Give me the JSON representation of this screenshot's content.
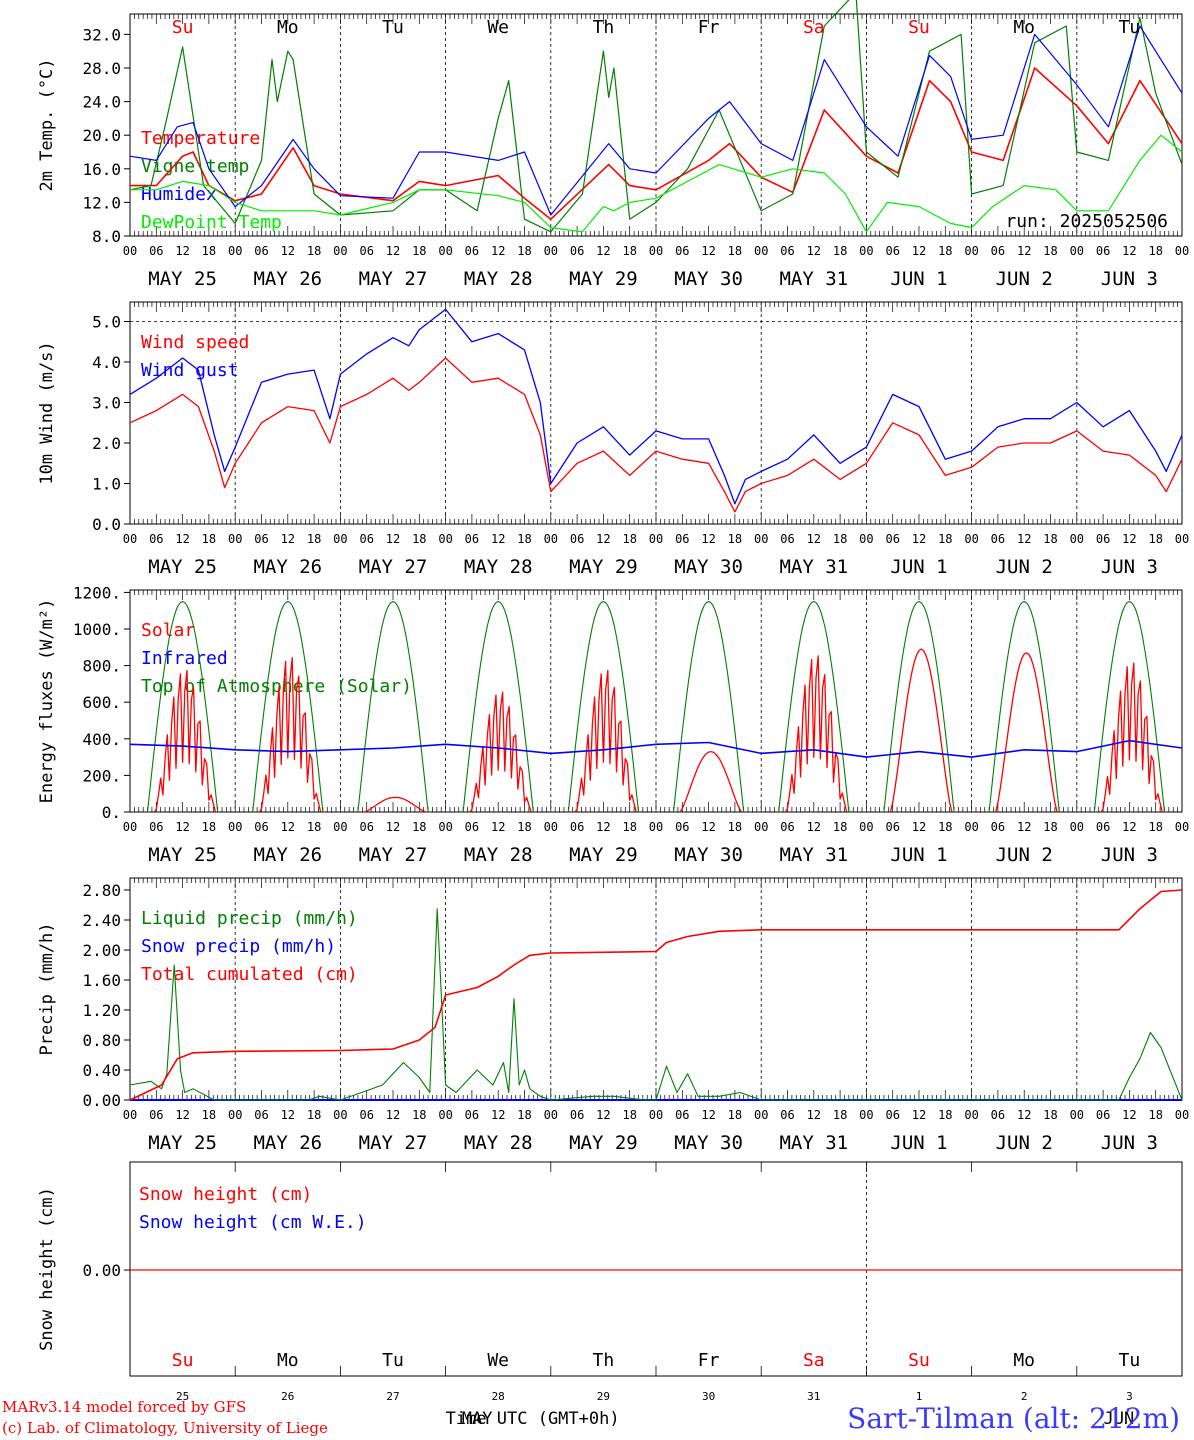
{
  "run_label": "run: 2025052506",
  "day_names": [
    "Su",
    "Mo",
    "Tu",
    "We",
    "Th",
    "Fr",
    "Sa",
    "Su",
    "Mo",
    "Tu"
  ],
  "date_labels": [
    "MAY 25",
    "MAY 26",
    "MAY 27",
    "MAY 28",
    "MAY 29",
    "MAY 30",
    "MAY 31",
    "JUN  1",
    "JUN  2",
    "JUN  3"
  ],
  "hour_labels": [
    "00",
    "06",
    "12",
    "18"
  ],
  "bottom_day_numbers": [
    "25",
    "26",
    "27",
    "28",
    "29",
    "30",
    "31",
    "1",
    "2",
    "3"
  ],
  "bottom_month_labels": [
    "MAY",
    "JUN"
  ],
  "time_axis_label": "Time UTC (GMT+0h)",
  "credits": [
    "MARv3.14 model forced by GFS",
    "(c) Lab. of Climatology, University of Liege"
  ],
  "station": "Sart-Tilman (alt: 212m)",
  "colors": {
    "red": "#ff0000",
    "green": "#008000",
    "blue": "#0000ff",
    "lightgreen": "#00ee00",
    "sunday": "#ff0000",
    "weekday": "#000000"
  },
  "chart_data": [
    {
      "type": "line",
      "ylabel": "2m Temp. (°C)",
      "ylim": [
        8,
        34
      ],
      "yticks": [
        "8.0",
        "12.0",
        "16.0",
        "20.0",
        "24.0",
        "28.0",
        "32.0"
      ],
      "x_unit": "day offset from 2025-05-25 00 UTC",
      "xlim": [
        0,
        10
      ],
      "series": [
        {
          "name": "Temperature",
          "color": "red",
          "x": [
            0,
            0.25,
            0.5,
            0.6,
            0.75,
            1,
            1.25,
            1.55,
            1.75,
            2,
            2.5,
            2.75,
            3,
            3.5,
            3.75,
            4,
            4.55,
            4.75,
            5,
            5.5,
            5.7,
            6,
            6.3,
            6.6,
            7,
            7.3,
            7.6,
            7.8,
            8,
            8.3,
            8.6,
            9,
            9.3,
            9.6,
            10
          ],
          "values": [
            14,
            14,
            17.5,
            18,
            14,
            12.2,
            13,
            18.5,
            14,
            13,
            12.2,
            14.5,
            14,
            15.2,
            12.5,
            10,
            16.5,
            14,
            13.5,
            17,
            19,
            15,
            13.2,
            23,
            17.5,
            15.5,
            26.5,
            24,
            18,
            17,
            28,
            23.5,
            19,
            26.5,
            19
          ]
        },
        {
          "name": "Vigne temp",
          "color": "green",
          "x": [
            0,
            0.2,
            0.35,
            0.5,
            0.7,
            1,
            1.25,
            1.35,
            1.4,
            1.5,
            1.55,
            1.75,
            2,
            2.5,
            2.75,
            3,
            3.3,
            3.5,
            3.6,
            3.75,
            4,
            4.3,
            4.5,
            4.55,
            4.6,
            4.75,
            5,
            5.3,
            5.6,
            6,
            6.3,
            6.6,
            6.9,
            7,
            7.3,
            7.6,
            7.9,
            8,
            8.3,
            8.6,
            8.9,
            9,
            9.3,
            9.6,
            9.75,
            10
          ],
          "values": [
            13.5,
            14,
            22,
            30.5,
            14,
            9.5,
            17,
            29,
            24,
            30,
            29,
            13,
            10.5,
            11,
            13.5,
            13.5,
            11,
            22,
            26.5,
            10,
            8.5,
            13,
            30,
            24.5,
            28,
            10,
            12,
            16,
            23,
            11,
            13,
            33,
            37,
            18,
            15,
            30,
            32,
            13,
            14,
            31,
            33,
            18,
            17,
            34,
            25,
            16.5
          ]
        },
        {
          "name": "Humidex",
          "color": "blue",
          "x": [
            0,
            0.25,
            0.45,
            0.6,
            0.75,
            1,
            1.25,
            1.55,
            1.75,
            2,
            2.5,
            2.75,
            3,
            3.5,
            3.75,
            4,
            4.55,
            4.75,
            5,
            5.5,
            5.7,
            6,
            6.3,
            6.6,
            7,
            7.3,
            7.6,
            7.8,
            8,
            8.3,
            8.6,
            9,
            9.3,
            9.6,
            10
          ],
          "values": [
            17.5,
            17,
            21,
            21.5,
            16,
            11.5,
            14,
            19.5,
            16,
            12.8,
            12.5,
            18,
            18,
            17,
            18,
            10.5,
            19,
            16,
            15.5,
            22,
            24,
            19,
            17,
            29,
            21,
            17.5,
            29.5,
            27,
            19.5,
            20,
            32,
            26,
            21,
            33,
            25
          ]
        },
        {
          "name": "DewPoint Temp",
          "color": "lightgreen",
          "x": [
            0,
            0.25,
            0.5,
            0.75,
            1,
            1.25,
            1.5,
            1.75,
            2,
            2.5,
            2.75,
            3,
            3.5,
            3.75,
            4,
            4.3,
            4.5,
            4.6,
            4.75,
            5,
            5.3,
            5.6,
            6,
            6.3,
            6.6,
            6.8,
            7,
            7.2,
            7.5,
            7.8,
            8,
            8.2,
            8.5,
            8.8,
            9,
            9.3,
            9.6,
            9.8,
            10
          ],
          "values": [
            13.5,
            13.5,
            14.5,
            14,
            12,
            11,
            11,
            11,
            10.5,
            12,
            13.5,
            13.5,
            12.8,
            12,
            9,
            8.5,
            11.5,
            11,
            12,
            12.5,
            14.5,
            16.5,
            15,
            16,
            15.5,
            13,
            8.5,
            12,
            11.5,
            9.5,
            9,
            11.5,
            14,
            13.5,
            11,
            11,
            17,
            20,
            18
          ]
        }
      ]
    },
    {
      "type": "line",
      "ylabel": "10m Wind (m/s)",
      "ylim": [
        0,
        5.4
      ],
      "yticks": [
        "0.0",
        "1.0",
        "2.0",
        "3.0",
        "4.0",
        "5.0"
      ],
      "x_unit": "day offset from 2025-05-25 00 UTC",
      "xlim": [
        0,
        10
      ],
      "series": [
        {
          "name": "Wind speed",
          "color": "red",
          "x": [
            0,
            0.25,
            0.5,
            0.65,
            0.8,
            0.9,
            1,
            1.25,
            1.5,
            1.75,
            1.9,
            2,
            2.25,
            2.5,
            2.65,
            2.75,
            3,
            3.25,
            3.5,
            3.75,
            3.9,
            4,
            4.25,
            4.5,
            4.75,
            5,
            5.25,
            5.5,
            5.65,
            5.75,
            5.85,
            6,
            6.25,
            6.5,
            6.75,
            7,
            7.25,
            7.5,
            7.75,
            8,
            8.25,
            8.5,
            8.75,
            9,
            9.25,
            9.5,
            9.75,
            9.85,
            10
          ],
          "values": [
            2.5,
            2.8,
            3.2,
            2.9,
            1.8,
            0.9,
            1.5,
            2.5,
            2.9,
            2.8,
            2,
            2.9,
            3.2,
            3.6,
            3.3,
            3.5,
            4.1,
            3.5,
            3.6,
            3.2,
            2.2,
            0.8,
            1.5,
            1.8,
            1.2,
            1.8,
            1.6,
            1.5,
            0.8,
            0.3,
            0.8,
            1,
            1.2,
            1.6,
            1.1,
            1.5,
            2.5,
            2.2,
            1.2,
            1.4,
            1.9,
            2,
            2,
            2.3,
            1.8,
            1.7,
            1.2,
            0.8,
            1.6
          ]
        },
        {
          "name": "Wind gust",
          "color": "blue",
          "x": [
            0,
            0.25,
            0.5,
            0.65,
            0.8,
            0.9,
            1,
            1.25,
            1.5,
            1.75,
            1.9,
            2,
            2.25,
            2.5,
            2.65,
            2.75,
            3,
            3.25,
            3.5,
            3.75,
            3.9,
            4,
            4.25,
            4.5,
            4.75,
            5,
            5.25,
            5.5,
            5.65,
            5.75,
            5.85,
            6,
            6.25,
            6.5,
            6.75,
            7,
            7.25,
            7.5,
            7.75,
            8,
            8.25,
            8.5,
            8.75,
            9,
            9.25,
            9.5,
            9.75,
            9.85,
            10
          ],
          "values": [
            3.2,
            3.6,
            4.1,
            3.8,
            2.2,
            1.3,
            1.9,
            3.5,
            3.7,
            3.8,
            2.6,
            3.7,
            4.2,
            4.6,
            4.4,
            4.8,
            5.3,
            4.5,
            4.7,
            4.3,
            3,
            1,
            2,
            2.4,
            1.7,
            2.3,
            2.1,
            2.1,
            1.2,
            0.5,
            1.1,
            1.3,
            1.6,
            2.2,
            1.5,
            1.9,
            3.2,
            2.9,
            1.6,
            1.8,
            2.4,
            2.6,
            2.6,
            3,
            2.4,
            2.8,
            1.8,
            1.3,
            2.2
          ]
        }
      ]
    },
    {
      "type": "line",
      "ylabel": "Energy fluxes (W/m²)",
      "ylim": [
        0,
        1250
      ],
      "yticks": [
        "0.",
        "200.",
        "400.",
        "600.",
        "800.",
        "1000.",
        "1200."
      ],
      "x_unit": "day offset from 2025-05-25 00 UTC",
      "xlim": [
        0,
        10
      ],
      "series": [
        {
          "name": "Solar",
          "color": "red",
          "daily_peak": [
            780,
            850,
            80,
            660,
            780,
            330,
            860,
            890,
            870,
            820
          ],
          "daily_spiky": [
            true,
            true,
            false,
            true,
            true,
            false,
            true,
            false,
            false,
            true
          ]
        },
        {
          "name": "Infrared",
          "color": "blue",
          "x": [
            0,
            0.5,
            1,
            1.5,
            2,
            2.5,
            3,
            3.5,
            4,
            4.5,
            5,
            5.5,
            6,
            6.5,
            7,
            7.5,
            8,
            8.5,
            9,
            9.5,
            10
          ],
          "values": [
            370,
            360,
            340,
            330,
            340,
            350,
            370,
            350,
            320,
            340,
            370,
            380,
            320,
            340,
            300,
            330,
            300,
            340,
            330,
            390,
            350
          ]
        },
        {
          "name": "Top of Atmosphere (Solar)",
          "color": "green",
          "daily_peak": 1150,
          "daylight_hours_utc": [
            4,
            20
          ]
        }
      ]
    },
    {
      "type": "line",
      "ylabel": "Precip (mm/h)",
      "ylim": [
        0,
        2.95
      ],
      "yticks": [
        "0.00",
        "0.40",
        "0.80",
        "1.20",
        "1.60",
        "2.00",
        "2.40",
        "2.80"
      ],
      "x_unit": "day offset from 2025-05-25 00 UTC",
      "xlim": [
        0,
        10
      ],
      "series": [
        {
          "name": "Liquid precip (mm/h)",
          "color": "green",
          "x": [
            0,
            0.2,
            0.3,
            0.35,
            0.42,
            0.48,
            0.52,
            0.6,
            0.8,
            1,
            1.7,
            1.8,
            2,
            2.4,
            2.6,
            2.75,
            2.85,
            2.92,
            3,
            3.1,
            3.3,
            3.45,
            3.55,
            3.6,
            3.65,
            3.7,
            3.75,
            3.8,
            3.9,
            4,
            4.4,
            4.6,
            4.9,
            5,
            5.1,
            5.2,
            5.3,
            5.4,
            5.6,
            5.8,
            6,
            9.4,
            9.5,
            9.6,
            9.7,
            9.8,
            9.9,
            10
          ],
          "values": [
            0.2,
            0.25,
            0.15,
            0.35,
            1.8,
            0.4,
            0.1,
            0.15,
            0,
            0,
            0,
            0.05,
            0,
            0.2,
            0.5,
            0.3,
            0.1,
            2.55,
            0.2,
            0.1,
            0.4,
            0.2,
            0.5,
            0.1,
            1.35,
            0.2,
            0.4,
            0.15,
            0.05,
            0,
            0.05,
            0.05,
            0,
            0,
            0.45,
            0.1,
            0.35,
            0.05,
            0.05,
            0.1,
            0,
            0,
            0.3,
            0.55,
            0.9,
            0.7,
            0.35,
            0
          ]
        },
        {
          "name": "Snow precip (mm/h)",
          "color": "blue",
          "x": [
            0,
            10
          ],
          "values": [
            0,
            0
          ]
        },
        {
          "name": "Total cumulated (cm)",
          "color": "red",
          "x": [
            0,
            0.3,
            0.45,
            0.6,
            1,
            2,
            2.5,
            2.75,
            2.9,
            3,
            3.3,
            3.5,
            3.65,
            3.8,
            4,
            5,
            5.1,
            5.3,
            5.6,
            6,
            9.4,
            9.6,
            9.8,
            10
          ],
          "values": [
            0,
            0.2,
            0.55,
            0.63,
            0.65,
            0.66,
            0.68,
            0.8,
            0.97,
            1.4,
            1.5,
            1.65,
            1.8,
            1.93,
            1.96,
            1.98,
            2.1,
            2.18,
            2.25,
            2.27,
            2.27,
            2.55,
            2.78,
            2.8
          ]
        }
      ]
    },
    {
      "type": "line",
      "ylabel": "Snow height (cm)",
      "yticks": [
        "0.00"
      ],
      "x_unit": "day offset from 2025-05-25 00 UTC",
      "xlim": [
        0,
        10
      ],
      "series": [
        {
          "name": "Snow height (cm)",
          "color": "red",
          "x": [
            0,
            10
          ],
          "values": [
            0,
            0
          ]
        },
        {
          "name": "Snow height (cm W.E.)",
          "color": "blue",
          "x": [],
          "values": []
        }
      ]
    }
  ]
}
